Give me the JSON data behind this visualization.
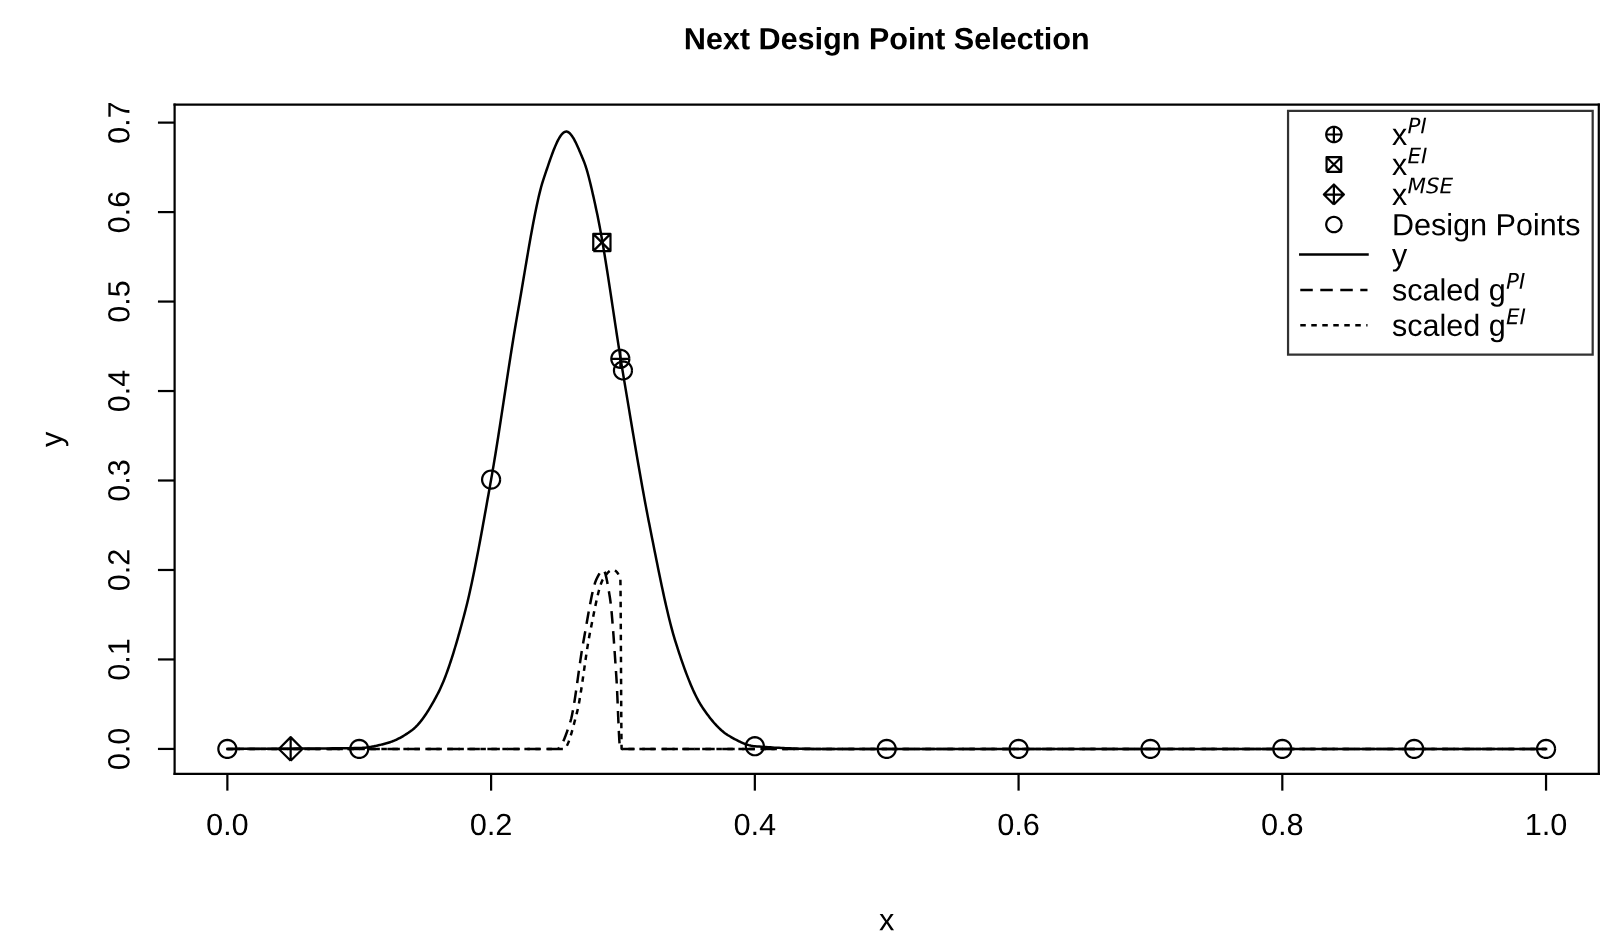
{
  "chart_data": {
    "type": "line",
    "title": "Next Design Point Selection",
    "xlabel": "x",
    "ylabel": "y",
    "xlim": [
      -0.04,
      1.04
    ],
    "ylim": [
      -0.028,
      0.72
    ],
    "xticks": [
      {
        "value": 0,
        "label": "0.0"
      },
      0.2,
      0.4,
      0.6,
      0.8,
      {
        "value": 1,
        "label": "1.0"
      }
    ],
    "yticks": [
      {
        "value": 0,
        "label": "0.0"
      },
      0.1,
      0.2,
      0.3,
      0.4,
      0.5,
      0.6,
      0.7
    ],
    "grid": false,
    "legend": "top right",
    "series": [
      {
        "name": "x$^{PI}$",
        "type": "scatter",
        "marker": [
          "circle",
          "cross"
        ],
        "color": "#000000",
        "x": [
          0.298
        ],
        "values": [
          0.436
        ]
      },
      {
        "name": "x$^{EI}$",
        "type": "scatter",
        "marker": [
          "square",
          "cross"
        ],
        "color": "#000000",
        "x": [
          0.284
        ],
        "values": [
          0.566
        ]
      },
      {
        "name": "x$^{MSE}$",
        "type": "scatter",
        "marker": [
          "diamond",
          "cross"
        ],
        "color": "#000000",
        "x": [
          0.048
        ],
        "values": [
          0
        ]
      },
      {
        "name": "Design Points",
        "type": "scatter",
        "marker": "circle",
        "color": "#000000",
        "x": [
          0,
          0.1,
          0.2,
          0.3,
          0.4,
          0.5,
          0.6,
          0.7,
          0.8,
          0.9,
          1.0
        ],
        "values": [
          0,
          0,
          0.301,
          0.423,
          0.003,
          0,
          0,
          0,
          0,
          0,
          0
        ]
      },
      {
        "name": "y",
        "type": "line",
        "line_style": "solid",
        "color": "#000000",
        "x": [
          0,
          0.1,
          0.12,
          0.14,
          0.16,
          0.18,
          0.2,
          0.22,
          0.24,
          0.257,
          0.27,
          0.28,
          0.3,
          0.32,
          0.34,
          0.36,
          0.38,
          0.4,
          0.45,
          0.5,
          1.0
        ],
        "values": [
          0,
          0.001,
          0.006,
          0.021,
          0.063,
          0.152,
          0.301,
          0.486,
          0.638,
          0.69,
          0.658,
          0.601,
          0.42,
          0.251,
          0.119,
          0.047,
          0.015,
          0.003,
          0,
          0,
          0
        ]
      },
      {
        "name": "scaled g$^{PI}$",
        "type": "line",
        "line_style": "dashed",
        "color": "#000000",
        "x": [
          0,
          0.25,
          0.26,
          0.27,
          0.28,
          0.285,
          0.29,
          0.295,
          0.298,
          1.0
        ],
        "values": [
          0,
          0,
          0.03,
          0.12,
          0.19,
          0.2,
          0.17,
          0.08,
          0,
          0
        ]
      },
      {
        "name": "scaled g$^{EI}$",
        "type": "line",
        "line_style": "dotted",
        "color": "#000000",
        "x": [
          0,
          0.255,
          0.265,
          0.275,
          0.285,
          0.292,
          0.298,
          0.299,
          1.0
        ],
        "values": [
          0,
          0,
          0.04,
          0.13,
          0.19,
          0.2,
          0.19,
          0,
          0
        ]
      }
    ]
  }
}
